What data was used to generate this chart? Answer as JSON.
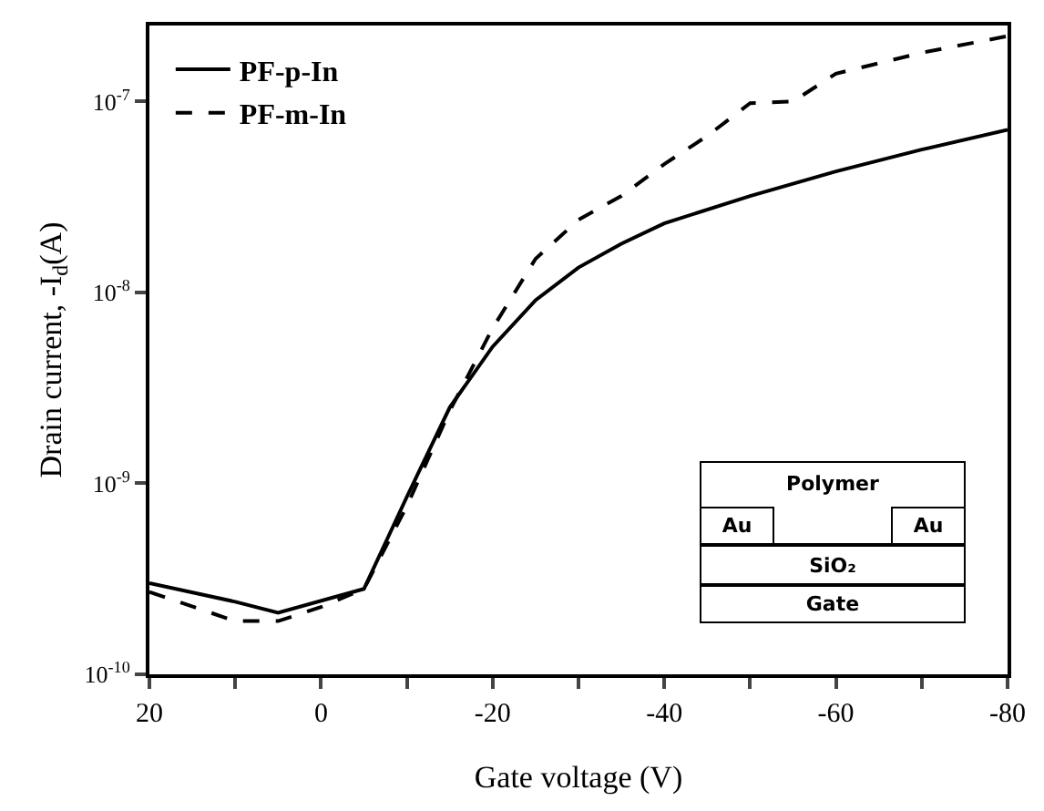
{
  "chart_data": {
    "type": "line",
    "xlabel": "Gate voltage (V)",
    "ylabel": "Drain current, -I$_{d}$(A)",
    "x": [
      20,
      10,
      5,
      0,
      -5,
      -10,
      -15,
      -20,
      -25,
      -30,
      -35,
      -40,
      -45,
      -50,
      -55,
      -60,
      -70,
      -80
    ],
    "series": [
      {
        "name": "PF-p-In",
        "color": "#000000",
        "line_style": "solid",
        "values": [
          3e-10,
          2.4e-10,
          2.1e-10,
          null,
          2.8e-10,
          8.5e-10,
          2.5e-09,
          5.2e-09,
          9.1e-09,
          1.35e-08,
          1.8e-08,
          2.3e-08,
          null,
          3.2e-08,
          null,
          4.3e-08,
          5.6e-08,
          7.1e-08
        ]
      },
      {
        "name": "PF-m-In",
        "color": "#000000",
        "line_style": "dashed",
        "values": [
          2.7e-10,
          1.9e-10,
          1.9e-10,
          2.25e-10,
          2.8e-10,
          7.6e-10,
          2.4e-09,
          6.5e-09,
          1.5e-08,
          2.4e-08,
          3.2e-08,
          4.7e-08,
          6.6e-08,
          9.8e-08,
          1e-07,
          1.4e-07,
          1.8e-07,
          2.2e-07
        ]
      }
    ],
    "xlim": [
      20,
      -80
    ],
    "xticks": [
      20,
      {
        "value": 10,
        "label": null
      },
      0,
      {
        "value": -10,
        "label": null
      },
      -20,
      {
        "value": -30,
        "label": null
      },
      -40,
      {
        "value": -50,
        "label": null
      },
      -60,
      {
        "value": -70,
        "label": null
      },
      -80
    ],
    "log": true,
    "ylim": [
      1e-10,
      2.5e-07
    ],
    "yticks": [
      {
        "value": 1e-10,
        "label": "10$^{-10}$"
      },
      {
        "value": 1e-09,
        "label": "10$^{-9}$"
      },
      {
        "value": 1e-08,
        "label": "10$^{-8}$"
      },
      {
        "value": 1e-07,
        "label": "10$^{-7}$"
      }
    ],
    "grid": false,
    "legend": "top left",
    "marker": "none",
    "annotations": [
      "Polymer",
      "Au",
      "Au",
      "SiO₂",
      "Gate"
    ]
  }
}
